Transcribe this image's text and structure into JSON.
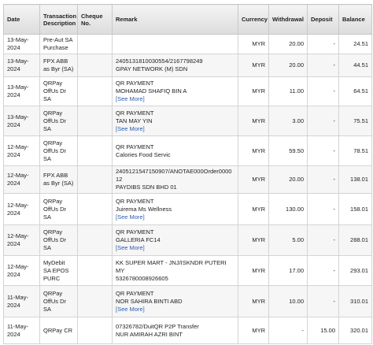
{
  "table": {
    "headers": [
      "Date",
      "Transaction Description",
      "Cheque No.",
      "Remark",
      "Currency",
      "Withdrawal",
      "Deposit",
      "Balance"
    ],
    "rows": [
      {
        "date": "13-May-2024",
        "description": "Pre-Aut SA Purchase",
        "remark": [],
        "currency": "MYR",
        "withdrawal": "20.00",
        "deposit": "-",
        "balance": "24.51"
      },
      {
        "date": "13-May-2024",
        "description": "FPX ABB as Byr (SA)",
        "remark": [
          "2405131810030554/2167798249",
          "GPAY NETWORK (M) SDN"
        ],
        "currency": "MYR",
        "withdrawal": "20.00",
        "deposit": "-",
        "balance": "44.51"
      },
      {
        "date": "13-May-2024",
        "description": "QRPay OffUs Dr SA",
        "remark": [
          "QR PAYMENT",
          "MOHAMAD SHAFIQ BIN A"
        ],
        "see_more": "[See More]",
        "currency": "MYR",
        "withdrawal": "11.00",
        "deposit": "-",
        "balance": "64.51"
      },
      {
        "date": "13-May-2024",
        "description": "QRPay OffUs Dr SA",
        "remark": [
          "QR PAYMENT",
          "TAN MAY YIN"
        ],
        "see_more": "[See More]",
        "currency": "MYR",
        "withdrawal": "3.00",
        "deposit": "-",
        "balance": "75.51"
      },
      {
        "date": "12-May-2024",
        "description": "QRPay OffUs Dr SA",
        "remark": [
          "QR PAYMENT",
          "Calories Food Servic"
        ],
        "currency": "MYR",
        "withdrawal": "59.50",
        "deposit": "-",
        "balance": "78.51"
      },
      {
        "date": "12-May-2024",
        "description": "FPX ABB as Byr (SA)",
        "remark": [
          "2405121547150907/ANOTAE000Order000012",
          "PAYDIBS SDN BHD 01"
        ],
        "currency": "MYR",
        "withdrawal": "20.00",
        "deposit": "-",
        "balance": "138.01"
      },
      {
        "date": "12-May-2024",
        "description": "QRPay OffUs Dr SA",
        "remark": [
          "QR PAYMENT",
          "Juirema Ms Wellness"
        ],
        "see_more": "[See More]",
        "currency": "MYR",
        "withdrawal": "130.00",
        "deposit": "-",
        "balance": "158.01"
      },
      {
        "date": "12-May-2024",
        "description": "QRPay OffUs Dr SA",
        "remark": [
          "QR PAYMENT",
          "GALLERIA FC14"
        ],
        "see_more": "[See More]",
        "currency": "MYR",
        "withdrawal": "5.00",
        "deposit": "-",
        "balance": "288.01"
      },
      {
        "date": "12-May-2024",
        "description": "MyDebit SA EPOS PURC",
        "remark": [
          "KK SUPER MART - JNJ/ISKNDR PUTERI MY",
          "5326780008926605"
        ],
        "currency": "MYR",
        "withdrawal": "17.00",
        "deposit": "-",
        "balance": "293.01"
      },
      {
        "date": "11-May-2024",
        "description": "QRPay OffUs Dr SA",
        "remark": [
          "QR PAYMENT",
          "NOR SAHIRA BINTI ABD"
        ],
        "see_more": "[See More]",
        "currency": "MYR",
        "withdrawal": "10.00",
        "deposit": "-",
        "balance": "310.01"
      },
      {
        "date": "11-May-2024",
        "description": "QRPay CR",
        "remark": [
          "07326782/DuitQR P2P Transfer",
          "NUR AMIRAH AZRI BINT"
        ],
        "currency": "MYR",
        "withdrawal": "-",
        "deposit": "15.00",
        "balance": "320.01"
      }
    ]
  }
}
